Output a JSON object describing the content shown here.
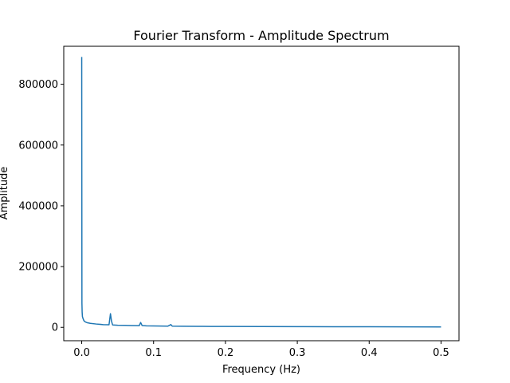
{
  "chart_data": {
    "type": "line",
    "title": "Fourier Transform - Amplitude Spectrum",
    "xlabel": "Frequency (Hz)",
    "ylabel": "Amplitude",
    "xlim": [
      -0.025,
      0.525
    ],
    "ylim": [
      -44000,
      925000
    ],
    "xticks": [
      0.0,
      0.1,
      0.2,
      0.3,
      0.4,
      0.5
    ],
    "xtick_labels": [
      "0.0",
      "0.1",
      "0.2",
      "0.3",
      "0.4",
      "0.5"
    ],
    "yticks": [
      0,
      200000,
      400000,
      600000,
      800000
    ],
    "ytick_labels": [
      "0",
      "200000",
      "400000",
      "600000",
      "800000"
    ],
    "grid": false,
    "color": "#1f77b4",
    "series": [
      {
        "x": [
          0.0,
          0.0003,
          0.0006,
          0.001,
          0.002,
          0.003,
          0.005,
          0.008,
          0.012,
          0.02,
          0.03,
          0.038,
          0.04,
          0.0415,
          0.043,
          0.05,
          0.06,
          0.07,
          0.08,
          0.082,
          0.084,
          0.09,
          0.1,
          0.12,
          0.124,
          0.126,
          0.14,
          0.16,
          0.18,
          0.2,
          0.25,
          0.3,
          0.35,
          0.4,
          0.45,
          0.5
        ],
        "y": [
          890000,
          80000,
          50000,
          35000,
          28000,
          22000,
          18000,
          15000,
          13000,
          11000,
          9000,
          8500,
          45000,
          20000,
          8000,
          7000,
          6500,
          6000,
          5500,
          16000,
          6000,
          5000,
          4500,
          4000,
          9000,
          4000,
          3500,
          3200,
          3000,
          2800,
          2500,
          2200,
          2000,
          1800,
          1500,
          1200
        ]
      }
    ]
  }
}
